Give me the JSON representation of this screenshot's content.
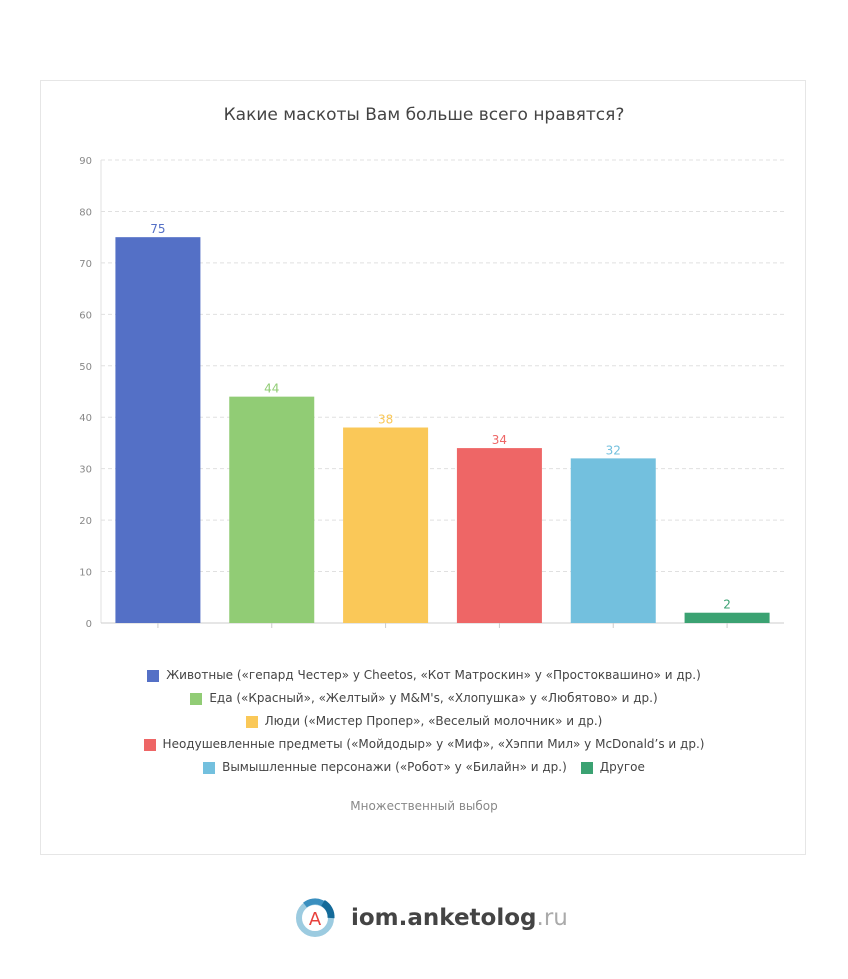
{
  "chart_data": {
    "type": "bar",
    "title": "Какие маскоты Вам больше всего нравятся?",
    "categories": [
      "Животные («гепард Честер» у Cheetos, «Кот Матроскин» у «Простоквашино» и др.)",
      "Еда («Красный», «Желтый» у M&M's, «Хлопушка» у «Любятово» и др.)",
      "Люди («Мистер Пропер», «Веселый молочник» и др.)",
      "Неодушевленные предметы («Мойдодыр» у «Миф», «Хэппи Мил» у McDonald’s и др.)",
      "Вымышленные персонажи («Робот» у «Билайн» и др.)",
      "Другое"
    ],
    "values": [
      75,
      44,
      38,
      34,
      32,
      2
    ],
    "colors": [
      "#5470c6",
      "#91cc75",
      "#fac858",
      "#ee6666",
      "#73c0de",
      "#3ba272"
    ],
    "ylim": [
      0,
      90
    ],
    "yticks": [
      0,
      10,
      20,
      30,
      40,
      50,
      60,
      70,
      80,
      90
    ],
    "grid": true,
    "legend_position": "bottom",
    "xlabel": "",
    "ylabel": ""
  },
  "note": "Множественный выбор",
  "logo": {
    "letter": "A",
    "main": "iom.anketolog",
    "tld": ".ru"
  }
}
